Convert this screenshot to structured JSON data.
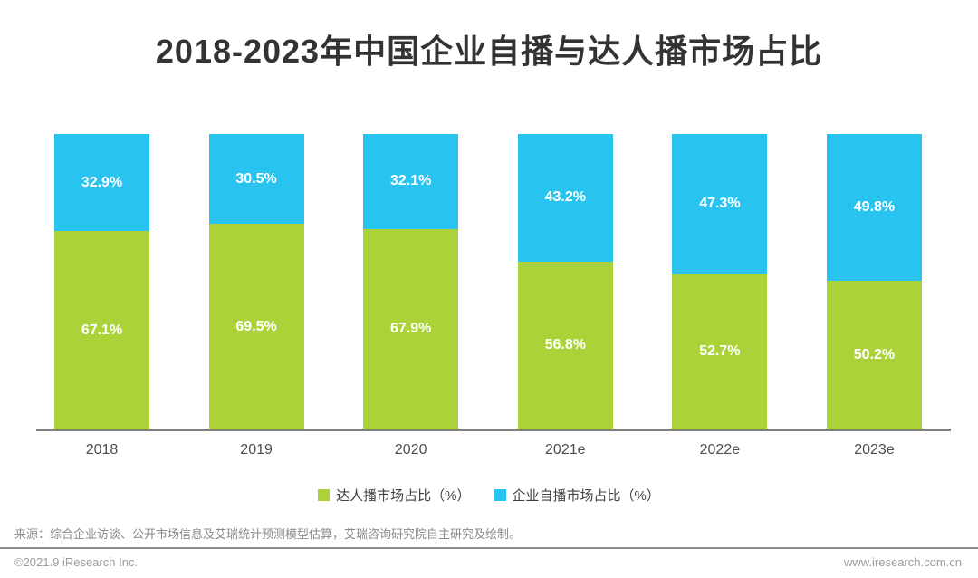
{
  "title": "2018-2023年中国企业自播与达人播市场占比",
  "chart_data": {
    "type": "bar",
    "stacked": true,
    "percent_stacked": true,
    "title": "2018-2023年中国企业自播与达人播市场占比",
    "categories": [
      "2018",
      "2019",
      "2020",
      "2021e",
      "2022e",
      "2023e"
    ],
    "series": [
      {
        "name": "达人播市场占比（%）",
        "color": "#abd339",
        "values": [
          67.1,
          69.5,
          67.9,
          56.8,
          52.7,
          50.2
        ]
      },
      {
        "name": "企业自播市场占比（%）",
        "color": "#28c4ef",
        "values": [
          32.9,
          30.5,
          32.1,
          43.2,
          47.3,
          49.8
        ]
      }
    ],
    "ylim": [
      0,
      100
    ],
    "unit": "%",
    "grid": false,
    "legend_position": "bottom",
    "value_labels": "inside-center"
  },
  "source_note": "来源：综合企业访谈、公开市场信息及艾瑞统计预测模型估算，艾瑞咨询研究院自主研究及绘制。",
  "footer": {
    "copyright": "©2021.9 iResearch Inc.",
    "website": "www.iresearch.com.cn"
  }
}
